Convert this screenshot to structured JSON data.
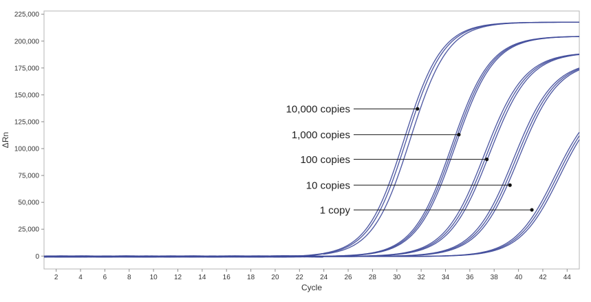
{
  "chart_data": {
    "type": "line",
    "title": "",
    "xlabel": "Cycle",
    "ylabel": "ΔRn",
    "xlim": [
      1,
      45
    ],
    "ylim": [
      -12000,
      228000
    ],
    "xticks": [
      2,
      4,
      6,
      8,
      10,
      12,
      14,
      16,
      18,
      20,
      22,
      24,
      26,
      28,
      30,
      32,
      34,
      36,
      38,
      40,
      42,
      44
    ],
    "yticks": [
      0,
      25000,
      50000,
      75000,
      100000,
      125000,
      150000,
      175000,
      200000,
      225000
    ],
    "ytick_labels": [
      "0",
      "25,000",
      "50,000",
      "75,000",
      "100,000",
      "125,000",
      "150,000",
      "175,000",
      "200,000",
      "225,000"
    ],
    "line_color": "#3f4a9a",
    "grid": false,
    "legend": "none",
    "series_groups": [
      {
        "label": "10,000 copies",
        "max": 218000,
        "midpoints": [
          30.6,
          30.8,
          31.1
        ],
        "slope": 1.55
      },
      {
        "label": "1,000 copies",
        "max": 205000,
        "midpoints": [
          34.5,
          34.65,
          34.8
        ],
        "slope": 1.6
      },
      {
        "label": "100 copies",
        "max": 190000,
        "midpoints": [
          37.2,
          37.4,
          37.6
        ],
        "slope": 1.65
      },
      {
        "label": "10 copies",
        "max": 182000,
        "midpoints": [
          39.6,
          39.8,
          40.0
        ],
        "slope": 1.65
      },
      {
        "label": "1 copy",
        "max": 150000,
        "midpoints": [
          43.0,
          43.2,
          43.4
        ],
        "slope": 1.65
      }
    ],
    "annotations": [
      {
        "label": "10,000 copies",
        "x": 31.7,
        "y": 137000
      },
      {
        "label": "1,000 copies",
        "x": 35.1,
        "y": 113000
      },
      {
        "label": "100 copies",
        "x": 37.4,
        "y": 90000
      },
      {
        "label": "10 copies",
        "x": 39.3,
        "y": 66000
      },
      {
        "label": "1 copy",
        "x": 41.1,
        "y": 43000
      }
    ]
  }
}
